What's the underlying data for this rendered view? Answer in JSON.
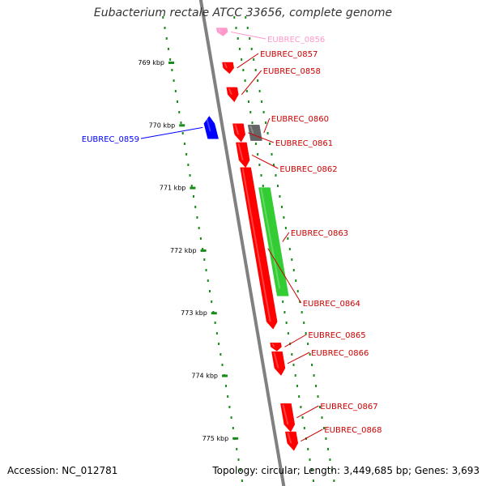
{
  "title": "Eubacterium rectale ATCC 33656, complete genome",
  "footer": {
    "accession": "Accession: NC_012781",
    "summary": "Topology: circular; Length: 3,449,685 bp; Genes: 3,693"
  },
  "axis": {
    "unit": "kbp",
    "ticks": [
      {
        "kbp": 769,
        "label": "769 kbp"
      },
      {
        "kbp": 770,
        "label": "770 kbp"
      },
      {
        "kbp": 771,
        "label": "771 kbp"
      },
      {
        "kbp": 772,
        "label": "772 kbp"
      },
      {
        "kbp": 773,
        "label": "773 kbp"
      },
      {
        "kbp": 774,
        "label": "774 kbp"
      },
      {
        "kbp": 775,
        "label": "775 kbp"
      }
    ]
  },
  "colors": {
    "backbone": "#808080",
    "forward_gene": "#ff0000",
    "reverse_gene": "#0000ff",
    "rna_gene": "#33cc33",
    "other_gene": "#666666",
    "faded_gene": "#ff99cc",
    "dotted_ring": "#1a8a1a",
    "tick_mark": "#1a8a1a"
  },
  "genes": [
    {
      "label": "EUBREC_0856",
      "start_kbp": 768.45,
      "end_kbp": 768.58,
      "lane": "forward",
      "type": "faded"
    },
    {
      "label": "EUBREC_0857",
      "start_kbp": 769.0,
      "end_kbp": 769.18,
      "lane": "forward",
      "type": "cds"
    },
    {
      "label": "EUBREC_0858",
      "start_kbp": 769.4,
      "end_kbp": 769.63,
      "lane": "forward",
      "type": "cds"
    },
    {
      "label": "EUBREC_0859",
      "start_kbp": 769.86,
      "end_kbp": 770.22,
      "lane": "reverse",
      "type": "cds"
    },
    {
      "label": "EUBREC_0860",
      "start_kbp": 770.0,
      "end_kbp": 770.25,
      "lane": "forward_outer",
      "type": "other"
    },
    {
      "label": "EUBREC_0861",
      "start_kbp": 769.98,
      "end_kbp": 770.27,
      "lane": "forward",
      "type": "cds"
    },
    {
      "label": "EUBREC_0862",
      "start_kbp": 770.28,
      "end_kbp": 770.68,
      "lane": "forward",
      "type": "cds"
    },
    {
      "label": "EUBREC_0863",
      "start_kbp": 771.0,
      "end_kbp": 772.73,
      "lane": "forward_outer",
      "type": "rna"
    },
    {
      "label": "EUBREC_0864",
      "start_kbp": 770.68,
      "end_kbp": 773.26,
      "lane": "forward",
      "type": "cds"
    },
    {
      "label": "EUBREC_0865",
      "start_kbp": 773.48,
      "end_kbp": 773.61,
      "lane": "forward",
      "type": "cds"
    },
    {
      "label": "EUBREC_0866",
      "start_kbp": 773.62,
      "end_kbp": 774.0,
      "lane": "forward",
      "type": "cds"
    },
    {
      "label": "EUBREC_0867",
      "start_kbp": 774.45,
      "end_kbp": 774.9,
      "lane": "forward",
      "type": "cds"
    },
    {
      "label": "EUBREC_0868",
      "start_kbp": 774.9,
      "end_kbp": 775.2,
      "lane": "forward",
      "type": "cds"
    }
  ]
}
